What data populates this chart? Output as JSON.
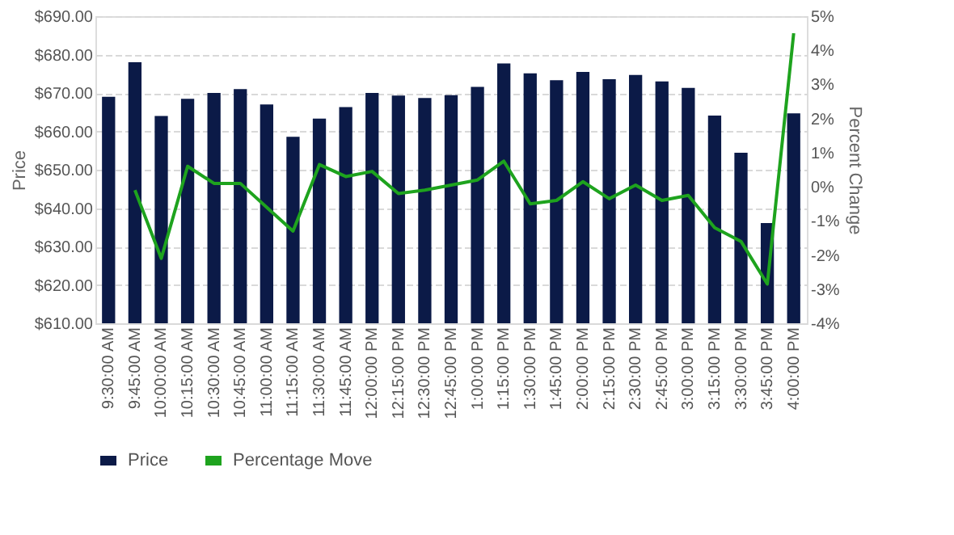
{
  "chart_data": {
    "type": "bar",
    "categories": [
      "9:30:00 AM",
      "9:45:00 AM",
      "10:00:00 AM",
      "10:15:00 AM",
      "10:30:00 AM",
      "10:45:00 AM",
      "11:00:00 AM",
      "11:15:00 AM",
      "11:30:00 AM",
      "11:45:00 AM",
      "12:00:00 PM",
      "12:15:00 PM",
      "12:30:00 PM",
      "12:45:00 PM",
      "1:00:00 PM",
      "1:15:00 PM",
      "1:30:00 PM",
      "1:45:00 PM",
      "2:00:00 PM",
      "2:15:00 PM",
      "2:30:00 PM",
      "2:45:00 PM",
      "3:00:00 PM",
      "3:15:00 PM",
      "3:30:00 PM",
      "3:45:00 PM",
      "4:00:00 PM"
    ],
    "series": [
      {
        "name": "Price",
        "color": "#0b1a47",
        "values": [
          669,
          678,
          664,
          668.5,
          670,
          671,
          667,
          658.6,
          663.3,
          666.3,
          670,
          669.3,
          668.7,
          669.4,
          671.6,
          677.7,
          675.1,
          673.3,
          675.5,
          673.6,
          674.7,
          673,
          671.3,
          664.1,
          654.4,
          636.1,
          664.7
        ]
      },
      {
        "name": "Percentage Move",
        "type": "line",
        "axis": "y2",
        "color": "#1ea31e",
        "values": [
          null,
          -0.1,
          -2.1,
          0.6,
          0.1,
          0.1,
          -0.6,
          -1.3,
          0.65,
          0.3,
          0.45,
          -0.2,
          -0.1,
          0.05,
          0.2,
          0.75,
          -0.5,
          -0.4,
          0.15,
          -0.35,
          0.05,
          -0.4,
          -0.25,
          -1.2,
          -1.6,
          -2.85,
          4.5
        ]
      }
    ],
    "ylabel": "Price",
    "y2label": "Percent Change",
    "ylim": [
      610,
      690
    ],
    "yticks": [
      {
        "value": 610,
        "label": "$610.00"
      },
      {
        "value": 620,
        "label": "$620.00"
      },
      {
        "value": 630,
        "label": "$630.00"
      },
      {
        "value": 640,
        "label": "$640.00"
      },
      {
        "value": 650,
        "label": "$650.00"
      },
      {
        "value": 660,
        "label": "$660.00"
      },
      {
        "value": 670,
        "label": "$670.00"
      },
      {
        "value": 680,
        "label": "$680.00"
      },
      {
        "value": 690,
        "label": "$690.00"
      }
    ],
    "y2lim": [
      -4,
      5
    ],
    "y2ticks": [
      {
        "value": -4,
        "label": "-4%"
      },
      {
        "value": -3,
        "label": "-3%"
      },
      {
        "value": -2,
        "label": "-2%"
      },
      {
        "value": -1,
        "label": "-1%"
      },
      {
        "value": 0,
        "label": "0%"
      },
      {
        "value": 1,
        "label": "1%"
      },
      {
        "value": 2,
        "label": "2%"
      },
      {
        "value": 3,
        "label": "3%"
      },
      {
        "value": 4,
        "label": "4%"
      },
      {
        "value": 5,
        "label": "5%"
      }
    ],
    "grid": "y",
    "legend": "bottom",
    "marker": "none",
    "line_style": "solid"
  }
}
